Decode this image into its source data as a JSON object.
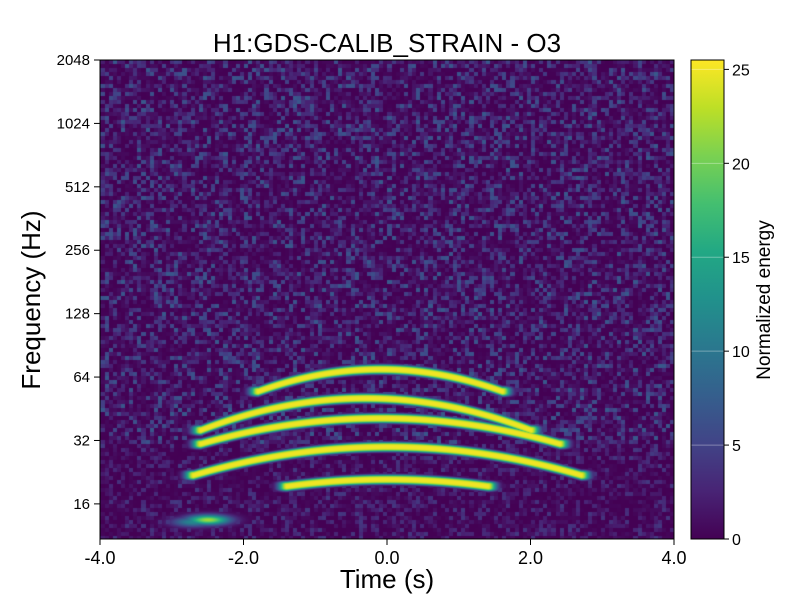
{
  "chart_data": {
    "type": "heatmap",
    "title": "H1:GDS-CALIB_STRAIN - O3",
    "xlabel": "Time (s)",
    "ylabel": "Frequency (Hz)",
    "x_range": [
      -4.0,
      4.0
    ],
    "x_ticks": [
      "-4.0",
      "-2.0",
      "0.0",
      "2.0",
      "4.0"
    ],
    "y_scale": "log2",
    "y_range": [
      10.9,
      2048
    ],
    "y_ticks": [
      "16",
      "32",
      "64",
      "128",
      "256",
      "512",
      "1024",
      "2048"
    ],
    "colorbar": {
      "label": "Normalized energy",
      "range": [
        0,
        25.5
      ],
      "ticks": [
        "0",
        "5",
        "10",
        "15",
        "20",
        "25"
      ],
      "colormap": "viridis",
      "grid": true
    },
    "features": [
      {
        "kind": "arch",
        "t_start": -1.4,
        "t_end": 1.4,
        "freq_peak": 21,
        "freq_ends": 19.5,
        "energy": 25
      },
      {
        "kind": "arch",
        "t_start": -2.7,
        "t_end": 2.7,
        "freq_peak": 30,
        "freq_ends": 22,
        "energy": 25
      },
      {
        "kind": "arch",
        "t_start": -2.6,
        "t_end": 2.4,
        "freq_peak": 41,
        "freq_ends": 31,
        "energy": 25
      },
      {
        "kind": "arch",
        "t_start": -2.6,
        "t_end": 2.0,
        "freq_peak": 51,
        "freq_ends": 36,
        "energy": 25
      },
      {
        "kind": "arch",
        "t_start": -1.8,
        "t_end": 1.6,
        "freq_peak": 70,
        "freq_ends": 55,
        "energy": 25
      },
      {
        "kind": "blob",
        "t": -2.5,
        "freq": 13.5,
        "energy": 22
      },
      {
        "kind": "blob",
        "t": -2.7,
        "freq": 13.2,
        "energy": 12
      }
    ],
    "background_energy": [
      0,
      3
    ]
  }
}
